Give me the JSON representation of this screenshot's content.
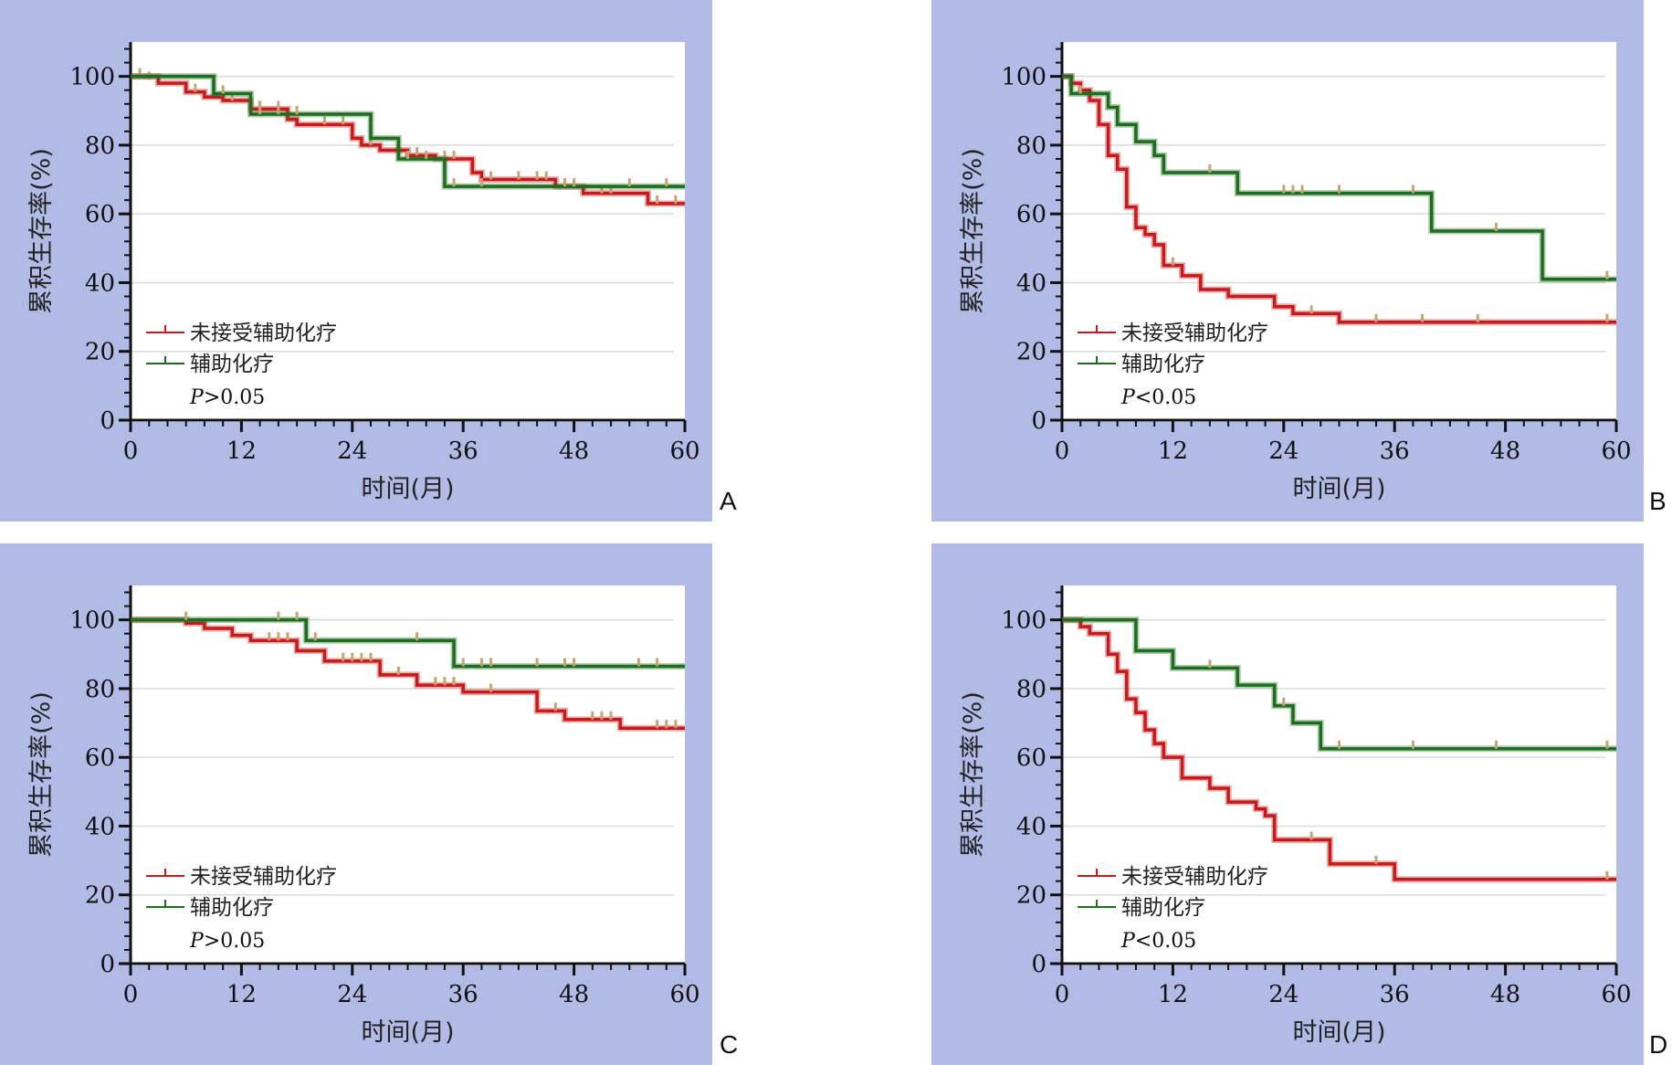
{
  "series_colors": {
    "未接受辅助化疗": "#c8191b",
    "辅助化疗": "#1c6e1c",
    "censor": "#c8a46e"
  },
  "chart_data": [
    {
      "type": "line",
      "panel_label": "A",
      "xlabel": "时间(月)",
      "ylabel": "累积生存率(%)",
      "xlim": [
        0,
        60
      ],
      "ylim": [
        0,
        110
      ],
      "xticks": [
        0,
        12,
        24,
        36,
        48,
        60
      ],
      "yticks": [
        0,
        20,
        40,
        60,
        80,
        100
      ],
      "grid": true,
      "legend_position": "bottom-left",
      "p_text": "P>0.05",
      "series": [
        {
          "name": "未接受辅助化疗",
          "steps": [
            [
              0,
              100
            ],
            [
              3,
              98
            ],
            [
              6,
              95.5
            ],
            [
              8,
              94
            ],
            [
              10,
              93
            ],
            [
              13,
              90.5
            ],
            [
              17,
              87.5
            ],
            [
              18,
              86
            ],
            [
              24,
              82
            ],
            [
              25,
              80
            ],
            [
              27,
              78.5
            ],
            [
              30,
              77
            ],
            [
              33,
              76
            ],
            [
              37,
              72
            ],
            [
              38,
              70
            ],
            [
              46,
              68
            ],
            [
              49,
              66
            ],
            [
              56,
              63
            ],
            [
              60,
              63
            ]
          ],
          "censors": [
            [
              1,
              100
            ],
            [
              2,
              99
            ],
            [
              7,
              95.5
            ],
            [
              11,
              93
            ],
            [
              14,
              90.5
            ],
            [
              16,
              90.5
            ],
            [
              21,
              86
            ],
            [
              23,
              86
            ],
            [
              26,
              80
            ],
            [
              31,
              77
            ],
            [
              34,
              76
            ],
            [
              35,
              76
            ],
            [
              39,
              70
            ],
            [
              42,
              70
            ],
            [
              44,
              70
            ],
            [
              45,
              70
            ],
            [
              51,
              66
            ],
            [
              52,
              66
            ],
            [
              57,
              63
            ],
            [
              59,
              63
            ]
          ]
        },
        {
          "name": "辅助化疗",
          "steps": [
            [
              0,
              100
            ],
            [
              9,
              95
            ],
            [
              13,
              89
            ],
            [
              26,
              82
            ],
            [
              29,
              76
            ],
            [
              34,
              68
            ],
            [
              60,
              68
            ]
          ],
          "censors": [
            [
              10,
              95
            ],
            [
              14,
              89
            ],
            [
              16,
              89
            ],
            [
              18,
              89
            ],
            [
              30,
              76
            ],
            [
              32,
              76
            ],
            [
              35,
              68
            ],
            [
              38,
              68
            ],
            [
              47,
              68
            ],
            [
              48,
              68
            ],
            [
              54,
              68
            ],
            [
              58,
              68
            ]
          ]
        }
      ]
    },
    {
      "type": "line",
      "panel_label": "B",
      "xlabel": "时间(月)",
      "ylabel": "累积生存率(%)",
      "xlim": [
        0,
        60
      ],
      "ylim": [
        0,
        110
      ],
      "xticks": [
        0,
        12,
        24,
        36,
        48,
        60
      ],
      "yticks": [
        0,
        20,
        40,
        60,
        80,
        100
      ],
      "grid": true,
      "legend_position": "bottom-left",
      "p_text": "P<0.05",
      "series": [
        {
          "name": "未接受辅助化疗",
          "steps": [
            [
              0,
              100
            ],
            [
              1,
              98
            ],
            [
              2,
              96
            ],
            [
              3,
              93
            ],
            [
              4,
              86
            ],
            [
              5,
              77
            ],
            [
              6,
              73
            ],
            [
              7,
              62
            ],
            [
              8,
              56
            ],
            [
              9,
              54
            ],
            [
              10,
              51
            ],
            [
              11,
              45
            ],
            [
              13,
              42
            ],
            [
              15,
              38
            ],
            [
              18,
              36
            ],
            [
              23,
              33
            ],
            [
              25,
              31
            ],
            [
              30,
              28.5
            ],
            [
              60,
              28.5
            ]
          ],
          "censors": [
            [
              12,
              45
            ],
            [
              27,
              31
            ],
            [
              34,
              28.5
            ],
            [
              39,
              28.5
            ],
            [
              45,
              28.5
            ],
            [
              59,
              28.5
            ]
          ]
        },
        {
          "name": "辅助化疗",
          "steps": [
            [
              0,
              100
            ],
            [
              1,
              95
            ],
            [
              5,
              91
            ],
            [
              6,
              86
            ],
            [
              8,
              81
            ],
            [
              10,
              77
            ],
            [
              11,
              72
            ],
            [
              19,
              66
            ],
            [
              40,
              55
            ],
            [
              52,
              41
            ],
            [
              60,
              41
            ]
          ],
          "censors": [
            [
              2,
              95
            ],
            [
              16,
              72
            ],
            [
              24,
              66
            ],
            [
              25,
              66
            ],
            [
              26,
              66
            ],
            [
              30,
              66
            ],
            [
              38,
              66
            ],
            [
              47,
              55
            ],
            [
              59,
              41
            ]
          ]
        }
      ]
    },
    {
      "type": "line",
      "panel_label": "C",
      "xlabel": "时间(月)",
      "ylabel": "累积生存率(%)",
      "xlim": [
        0,
        60
      ],
      "ylim": [
        0,
        110
      ],
      "xticks": [
        0,
        12,
        24,
        36,
        48,
        60
      ],
      "yticks": [
        0,
        20,
        40,
        60,
        80,
        100
      ],
      "grid": true,
      "legend_position": "bottom-left",
      "p_text": "P>0.05",
      "series": [
        {
          "name": "未接受辅助化疗",
          "steps": [
            [
              0,
              100
            ],
            [
              6,
              99
            ],
            [
              8,
              97.5
            ],
            [
              11,
              95.5
            ],
            [
              13,
              94
            ],
            [
              18,
              91
            ],
            [
              21,
              88
            ],
            [
              27,
              84
            ],
            [
              31,
              81
            ],
            [
              36,
              79
            ],
            [
              44,
              73.5
            ],
            [
              47,
              71
            ],
            [
              53,
              68.5
            ],
            [
              60,
              68.5
            ]
          ],
          "censors": [
            [
              15,
              94
            ],
            [
              16,
              94
            ],
            [
              17,
              94
            ],
            [
              23,
              88
            ],
            [
              24,
              88
            ],
            [
              25,
              88
            ],
            [
              26,
              88
            ],
            [
              29,
              84
            ],
            [
              33,
              81
            ],
            [
              34,
              81
            ],
            [
              35,
              81
            ],
            [
              39,
              79
            ],
            [
              46,
              73.5
            ],
            [
              50,
              71
            ],
            [
              51,
              71
            ],
            [
              52,
              71
            ],
            [
              57,
              68.5
            ],
            [
              58,
              68.5
            ],
            [
              59,
              68.5
            ]
          ]
        },
        {
          "name": "辅助化疗",
          "steps": [
            [
              0,
              100
            ],
            [
              19,
              94
            ],
            [
              35,
              86.5
            ],
            [
              60,
              86.5
            ]
          ],
          "censors": [
            [
              6,
              100
            ],
            [
              16,
              100
            ],
            [
              18,
              100
            ],
            [
              20,
              94
            ],
            [
              31,
              94
            ],
            [
              36,
              86.5
            ],
            [
              38,
              86.5
            ],
            [
              39,
              86.5
            ],
            [
              44,
              86.5
            ],
            [
              47,
              86.5
            ],
            [
              48,
              86.5
            ],
            [
              55,
              86.5
            ],
            [
              57,
              86.5
            ]
          ]
        }
      ]
    },
    {
      "type": "line",
      "panel_label": "D",
      "xlabel": "时间(月)",
      "ylabel": "累积生存率(%)",
      "xlim": [
        0,
        60
      ],
      "ylim": [
        0,
        110
      ],
      "xticks": [
        0,
        12,
        24,
        36,
        48,
        60
      ],
      "yticks": [
        0,
        20,
        40,
        60,
        80,
        100
      ],
      "grid": true,
      "legend_position": "bottom-left",
      "p_text": "P<0.05",
      "series": [
        {
          "name": "未接受辅助化疗",
          "steps": [
            [
              0,
              100
            ],
            [
              2,
              98
            ],
            [
              3,
              96
            ],
            [
              5,
              90
            ],
            [
              6,
              85
            ],
            [
              7,
              77
            ],
            [
              8,
              73
            ],
            [
              9,
              68
            ],
            [
              10,
              64
            ],
            [
              11,
              60
            ],
            [
              13,
              54
            ],
            [
              16,
              51
            ],
            [
              18,
              47
            ],
            [
              21,
              45
            ],
            [
              22,
              43
            ],
            [
              23,
              36
            ],
            [
              29,
              29
            ],
            [
              36,
              24.5
            ],
            [
              60,
              24.5
            ]
          ],
          "censors": [
            [
              27,
              36
            ],
            [
              34,
              29
            ],
            [
              59,
              24.5
            ]
          ]
        },
        {
          "name": "辅助化疗",
          "steps": [
            [
              0,
              100
            ],
            [
              8,
              91
            ],
            [
              12,
              86
            ],
            [
              19,
              81
            ],
            [
              23,
              75
            ],
            [
              25,
              70
            ],
            [
              28,
              62.5
            ],
            [
              60,
              62.5
            ]
          ],
          "censors": [
            [
              16,
              86
            ],
            [
              24,
              75
            ],
            [
              30,
              62.5
            ],
            [
              38,
              62.5
            ],
            [
              47,
              62.5
            ],
            [
              59,
              62.5
            ]
          ]
        }
      ]
    }
  ]
}
